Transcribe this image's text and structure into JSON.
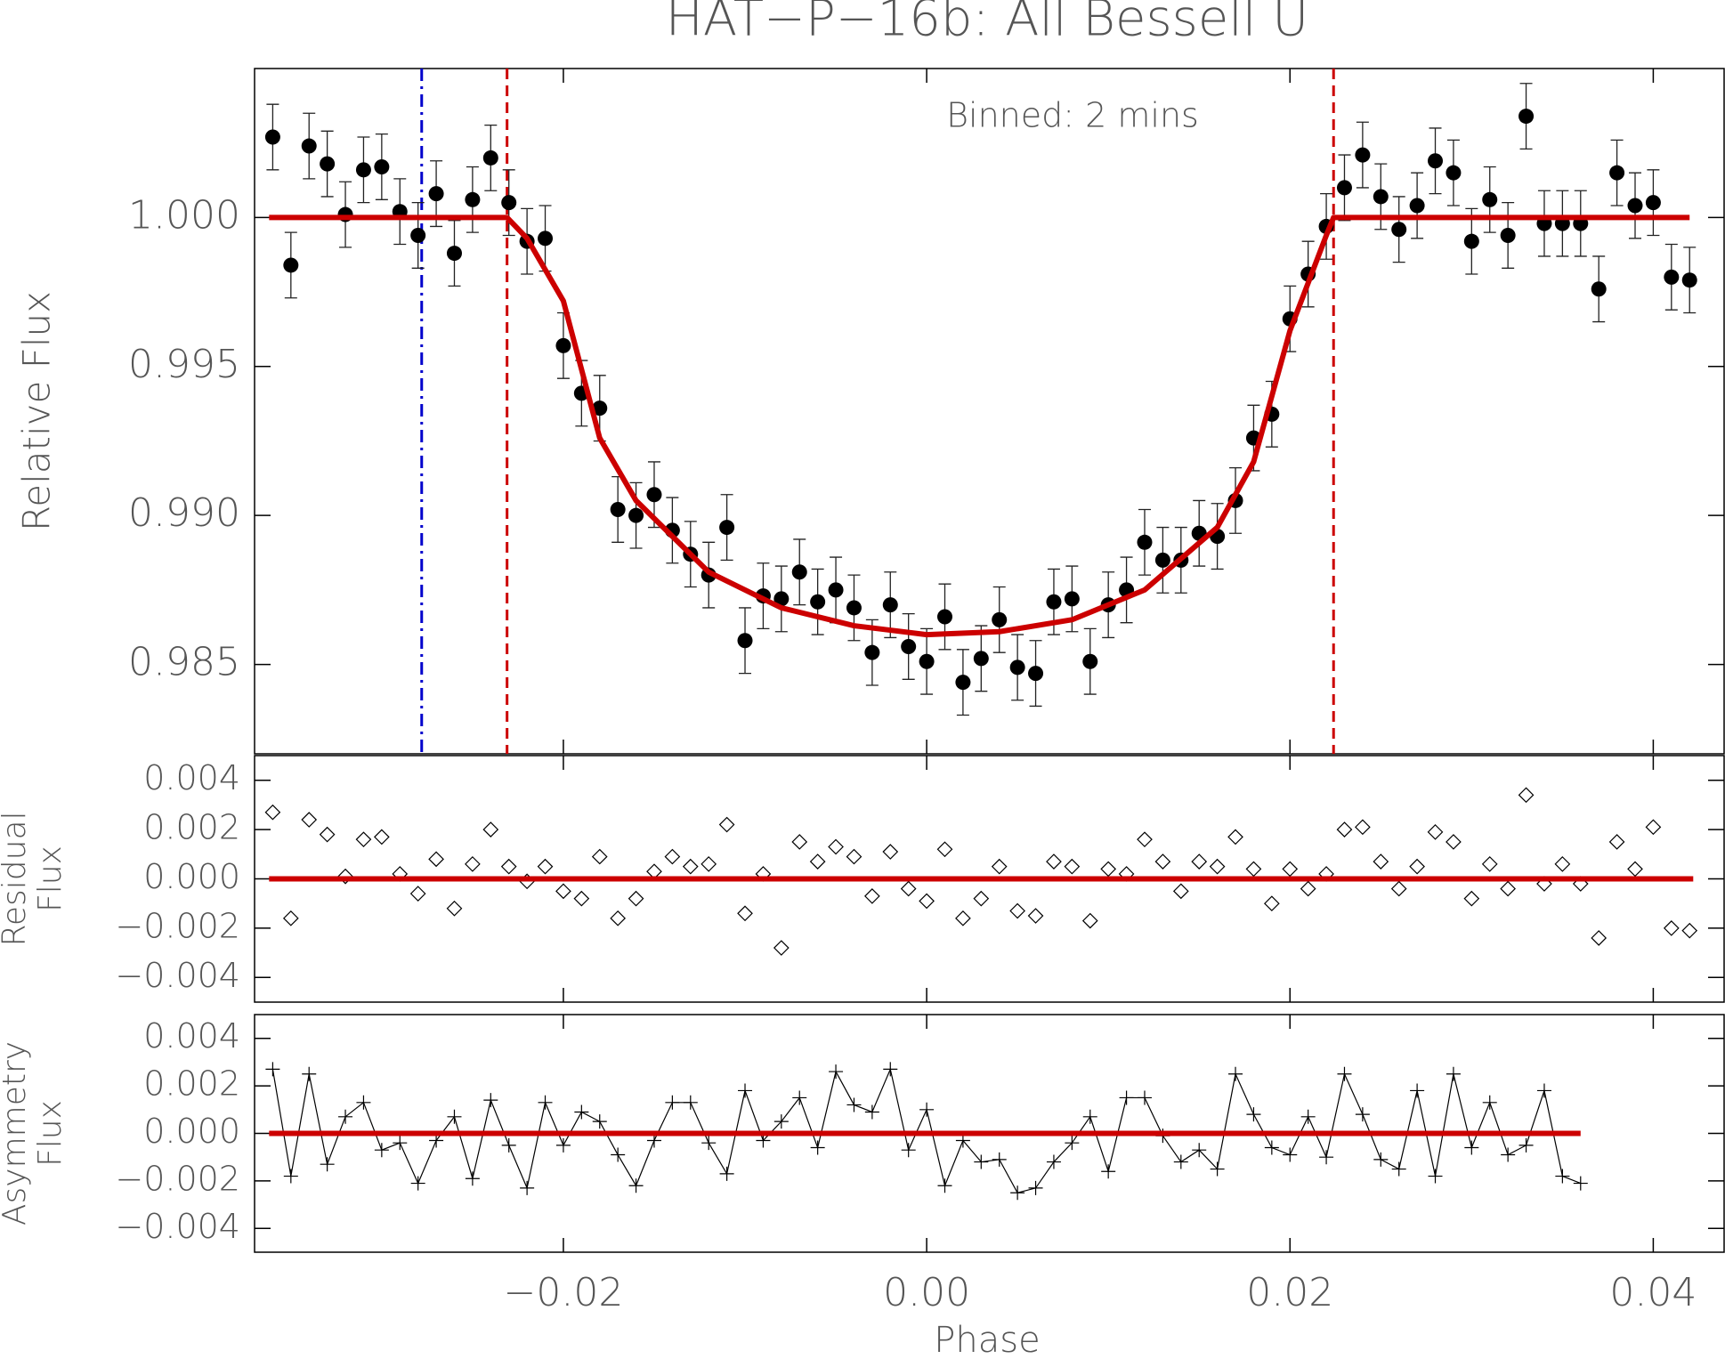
{
  "chart_data": [
    {
      "type": "errorbar",
      "title": "HAT−P−16b: All Bessell U",
      "annotation": "Binned: 2 mins",
      "ylabel": [
        "Relative Flux"
      ],
      "xlim": [
        -0.037,
        0.0439
      ],
      "ylim": [
        0.982,
        1.005
      ],
      "yticks": [
        {
          "value": 0.985,
          "label": "0.985"
        },
        {
          "value": 0.99,
          "label": "0.990"
        },
        {
          "value": 0.995,
          "label": "0.995"
        },
        {
          "value": 1,
          "label": "1.000"
        }
      ],
      "color": "#000000",
      "yerr": 0.0011,
      "x": [
        -0.036,
        -0.035,
        -0.034,
        -0.033,
        -0.032,
        -0.031,
        -0.03,
        -0.029,
        -0.028,
        -0.027,
        -0.026,
        -0.025,
        -0.024,
        -0.023,
        -0.022,
        -0.021,
        -0.02,
        -0.019,
        -0.018,
        -0.017,
        -0.016,
        -0.015,
        -0.014,
        -0.013,
        -0.012,
        -0.011,
        -0.01,
        -0.009,
        -0.008,
        -0.007,
        -0.006,
        -0.005,
        -0.004,
        -0.003,
        -0.002,
        -0.001,
        0,
        0.001,
        0.002,
        0.003,
        0.004,
        0.005,
        0.006,
        0.007,
        0.008,
        0.009,
        0.01,
        0.011,
        0.012,
        0.013,
        0.014,
        0.015,
        0.016,
        0.017,
        0.018,
        0.019,
        0.02,
        0.021,
        0.022,
        0.023,
        0.024,
        0.025,
        0.026,
        0.027,
        0.028,
        0.029,
        0.03,
        0.031,
        0.032,
        0.033,
        0.034,
        0.035,
        0.036,
        0.037,
        0.038,
        0.039,
        0.04,
        0.041,
        0.042
      ],
      "values": [
        1.0027,
        0.9984,
        1.0024,
        1.0018,
        1.0001,
        1.0016,
        1.0017,
        1.0002,
        0.9994,
        1.0008,
        0.9988,
        1.0006,
        1.002,
        1.0005,
        0.9992,
        0.9993,
        0.9957,
        0.9941,
        0.9936,
        0.9902,
        0.99,
        0.9907,
        0.9895,
        0.9887,
        0.988,
        0.9896,
        0.9858,
        0.9873,
        0.9872,
        0.9881,
        0.9871,
        0.9875,
        0.9869,
        0.9854,
        0.987,
        0.9856,
        0.9851,
        0.9866,
        0.9844,
        0.9852,
        0.9865,
        0.9849,
        0.9847,
        0.9871,
        0.9872,
        0.9851,
        0.987,
        0.9875,
        0.9891,
        0.9885,
        0.9885,
        0.9894,
        0.9893,
        0.9905,
        0.9926,
        0.9934,
        0.9966,
        0.9981,
        0.9997,
        1.001,
        1.0021,
        1.0007,
        0.9996,
        1.0004,
        1.0019,
        1.0015,
        0.9992,
        1.0006,
        0.9994,
        1.0034,
        0.9998,
        0.9998,
        0.9998,
        0.9976,
        1.0015,
        1.0004,
        1.0005,
        0.998,
        0.9979
      ],
      "model": {
        "color": "#cc0000",
        "x": [
          -0.0362,
          -0.0231,
          -0.022,
          -0.02,
          -0.018,
          -0.016,
          -0.012,
          -0.008,
          -0.004,
          0,
          0.004,
          0.008,
          0.012,
          0.016,
          0.018,
          0.02,
          0.022,
          0.0224,
          0.042
        ],
        "values": [
          1,
          1,
          0.9993,
          0.9972,
          0.9926,
          0.9905,
          0.9881,
          0.9869,
          0.9863,
          0.986,
          0.9861,
          0.9865,
          0.9875,
          0.9896,
          0.9918,
          0.9962,
          0.9994,
          1,
          1
        ]
      },
      "vlines": [
        {
          "x": -0.0278,
          "color": "#0000cc",
          "dash": "dashdot"
        },
        {
          "x": -0.0231,
          "color": "#cc0000",
          "dash": "dash"
        },
        {
          "x": 0.0224,
          "color": "#cc0000",
          "dash": "dash"
        }
      ]
    },
    {
      "type": "diamond",
      "ylabel": [
        "Residual",
        "Flux"
      ],
      "xlim": [
        -0.037,
        0.0439
      ],
      "ylim": [
        -0.005,
        0.005
      ],
      "yticks": [
        {
          "value": -0.004,
          "label": "−0.004"
        },
        {
          "value": -0.002,
          "label": "−0.002"
        },
        {
          "value": 0,
          "label": "0.000"
        },
        0.002,
        0.004
      ],
      "color": "#000000",
      "x": [
        -0.036,
        -0.035,
        -0.034,
        -0.033,
        -0.032,
        -0.031,
        -0.03,
        -0.029,
        -0.028,
        -0.027,
        -0.026,
        -0.025,
        -0.024,
        -0.023,
        -0.022,
        -0.021,
        -0.02,
        -0.019,
        -0.018,
        -0.017,
        -0.016,
        -0.015,
        -0.014,
        -0.013,
        -0.012,
        -0.011,
        -0.01,
        -0.009,
        -0.008,
        -0.007,
        -0.006,
        -0.005,
        -0.004,
        -0.003,
        -0.002,
        -0.001,
        0,
        0.001,
        0.002,
        0.003,
        0.004,
        0.005,
        0.006,
        0.007,
        0.008,
        0.009,
        0.01,
        0.011,
        0.012,
        0.013,
        0.014,
        0.015,
        0.016,
        0.017,
        0.018,
        0.019,
        0.02,
        0.021,
        0.022,
        0.023,
        0.024,
        0.025,
        0.026,
        0.027,
        0.028,
        0.029,
        0.03,
        0.031,
        0.032,
        0.033,
        0.034,
        0.035,
        0.036,
        0.037,
        0.038,
        0.039,
        0.04,
        0.041,
        0.042
      ],
      "values": [
        0.0027,
        -0.0016,
        0.0024,
        0.0018,
        0.0001,
        0.0016,
        0.0017,
        0.0002,
        -0.0006,
        0.0008,
        -0.0012,
        0.0006,
        0.002,
        0.0005,
        -0.0001,
        0.0005,
        -0.0005,
        -0.0008,
        0.0009,
        -0.0016,
        -0.0008,
        0.0003,
        0.0009,
        0.0005,
        0.0006,
        0.0022,
        -0.0014,
        0.0002,
        -0.0028,
        0.0015,
        0.0007,
        0.0013,
        0.0009,
        -0.0007,
        0.0011,
        -0.0004,
        -0.0009,
        0.0012,
        -0.0016,
        -0.0008,
        0.0005,
        -0.0013,
        -0.0015,
        0.0007,
        0.0005,
        -0.0017,
        0.0004,
        0.0002,
        0.0016,
        0.0007,
        -0.0005,
        0.0007,
        0.0005,
        0.0017,
        0.0004,
        -0.001,
        0.0004,
        -0.0004,
        0.0002,
        0.002,
        0.0021,
        0.0007,
        -0.0004,
        0.0005,
        0.0019,
        0.0015,
        -0.0008,
        0.0006,
        -0.0004,
        0.0034,
        -0.0002,
        0.0006,
        -0.0002,
        -0.0024,
        0.0015,
        0.0004,
        0.0021,
        -0.002,
        -0.0021
      ],
      "model": {
        "color": "#cc0000",
        "x": [
          -0.0362,
          0.0422
        ],
        "values": [
          0,
          0
        ]
      }
    },
    {
      "type": "plusline",
      "ylabel": [
        "Asymmetry",
        "Flux"
      ],
      "xlabel": "Phase",
      "xlim": [
        -0.037,
        0.0439
      ],
      "ylim": [
        -0.005,
        0.005
      ],
      "xticks": [
        {
          "value": -0.02,
          "label": "−0.02"
        },
        {
          "value": 0,
          "label": "0.00"
        },
        0.02,
        0.04
      ],
      "yticks": [
        {
          "value": -0.004,
          "label": "−0.004"
        },
        {
          "value": -0.002,
          "label": "−0.002"
        },
        {
          "value": 0,
          "label": "0.000"
        },
        0.002,
        0.004
      ],
      "color": "#000000",
      "x": [
        -0.036,
        -0.035,
        -0.034,
        -0.033,
        -0.032,
        -0.031,
        -0.03,
        -0.029,
        -0.028,
        -0.027,
        -0.026,
        -0.025,
        -0.024,
        -0.023,
        -0.022,
        -0.021,
        -0.02,
        -0.019,
        -0.018,
        -0.017,
        -0.016,
        -0.015,
        -0.014,
        -0.013,
        -0.012,
        -0.011,
        -0.01,
        -0.009,
        -0.008,
        -0.007,
        -0.006,
        -0.005,
        -0.004,
        -0.003,
        -0.002,
        -0.001,
        0,
        0.001,
        0.002,
        0.003,
        0.004,
        0.005,
        0.006,
        0.007,
        0.008,
        0.009,
        0.01,
        0.011,
        0.012,
        0.013,
        0.014,
        0.015,
        0.016,
        0.017,
        0.018,
        0.019,
        0.02,
        0.021,
        0.022,
        0.023,
        0.024,
        0.025,
        0.026,
        0.027,
        0.028,
        0.029,
        0.03,
        0.031,
        0.032,
        0.033,
        0.034,
        0.035,
        0.036
      ],
      "values": [
        0.0027,
        -0.0018,
        0.0025,
        -0.0013,
        0.0007,
        0.0013,
        -0.0007,
        -0.0004,
        -0.0021,
        -0.0003,
        0.0007,
        -0.0019,
        0.0014,
        -0.0005,
        -0.0023,
        0.0013,
        -0.0005,
        0.0009,
        0.0005,
        -0.0009,
        -0.0022,
        -0.0003,
        0.0013,
        0.0013,
        -0.0004,
        -0.0017,
        0.0018,
        -0.0003,
        0.0005,
        0.0015,
        -0.0006,
        0.0026,
        0.0012,
        0.0009,
        0.0027,
        -0.0007,
        0.001,
        -0.0022,
        -0.0003,
        -0.0012,
        -0.0011,
        -0.0025,
        -0.0023,
        -0.0012,
        -0.0004,
        0.0007,
        -0.0016,
        0.0015,
        0.0015,
        -0.0001,
        -0.0012,
        -0.0007,
        -0.0015,
        0.0025,
        0.0008,
        -0.0006,
        -0.0009,
        0.0007,
        -0.001,
        0.0025,
        0.0008,
        -0.0011,
        -0.0015,
        0.0018,
        -0.0018,
        0.0025,
        -0.0006,
        0.0013,
        -0.0009,
        -0.0005,
        0.0018,
        -0.0018,
        -0.0021
      ],
      "model": {
        "color": "#cc0000",
        "x": [
          -0.0362,
          0.036
        ],
        "values": [
          0,
          0
        ]
      }
    }
  ]
}
